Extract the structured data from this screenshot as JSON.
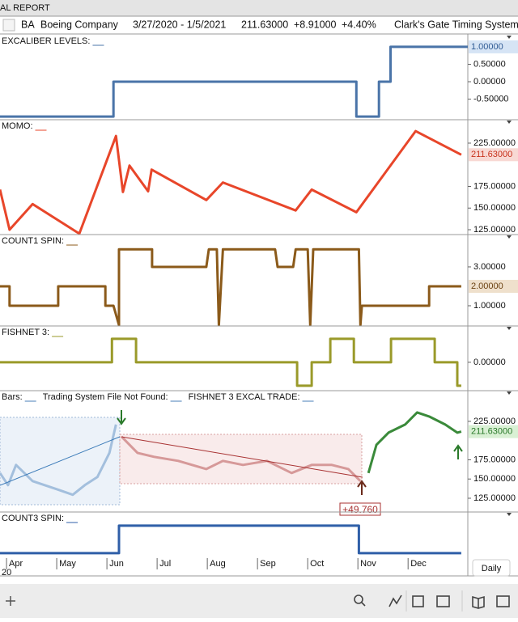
{
  "window_title": "AL REPORT",
  "header": {
    "symbol": "BA",
    "name": "Boeing Company",
    "date_range": "3/27/2020 - 1/5/2021",
    "last": "211.63000",
    "change": "+8.91000",
    "change_pct": "+4.40%",
    "system": "Clark's Gate Timing System ©"
  },
  "time_axis": {
    "xlim": [
      -0.13,
      9.19
    ],
    "xticks": [
      {
        "value": 0,
        "label": "Apr"
      },
      {
        "value": 1,
        "label": "May"
      },
      {
        "value": 2,
        "label": "Jun"
      },
      {
        "value": 3,
        "label": "Jul"
      },
      {
        "value": 4,
        "label": "Aug"
      },
      {
        "value": 5,
        "label": "Sep"
      },
      {
        "value": 6,
        "label": "Oct"
      },
      {
        "value": 7,
        "label": "Nov"
      },
      {
        "value": 8,
        "label": "Dec"
      }
    ],
    "year_label": "20",
    "period": "Daily"
  },
  "chart_data": [
    {
      "type": "line",
      "title": "EXCALIBER LEVELS:",
      "color": "#4a74a8",
      "x": [
        -0.13,
        2.13,
        2.13,
        6.97,
        6.97,
        7.42,
        7.42,
        7.65,
        7.65,
        9.19
      ],
      "values": [
        -1,
        -1,
        0,
        0,
        -1,
        -1,
        0,
        0,
        1,
        1
      ],
      "ylim": [
        -1.09,
        1.3
      ],
      "yticks": [
        {
          "value": 0.5,
          "label": "0.50000"
        },
        {
          "value": 0,
          "label": "0.00000"
        },
        {
          "value": -0.5,
          "label": "-0.50000"
        }
      ],
      "last_value": {
        "value": 1,
        "label": "1.00000"
      },
      "last_colors": [
        "#d6e4f5",
        "#2f5b94"
      ]
    },
    {
      "type": "line",
      "title": "MOMO:",
      "color": "#e8462a",
      "x": [
        -0.13,
        0.06,
        0.52,
        1.45,
        2.18,
        2.32,
        2.45,
        2.82,
        2.89,
        3.98,
        4.31,
        5.76,
        6.08,
        6.97,
        8.15,
        9.06
      ],
      "values": [
        171.3,
        125.0,
        154.6,
        120.4,
        233.3,
        168.5,
        199.1,
        169.4,
        194.4,
        159.3,
        179.6,
        147.2,
        171.3,
        145.2,
        238.9,
        211.63
      ],
      "ylim": [
        119.4,
        250.2
      ],
      "yticks": [
        {
          "value": 225,
          "label": "225.00000"
        },
        {
          "value": 175,
          "label": "175.00000"
        },
        {
          "value": 150,
          "label": "150.00000"
        },
        {
          "value": 125,
          "label": "125.00000"
        }
      ],
      "last_value": {
        "value": 211.63,
        "label": "211.63000"
      },
      "last_colors": [
        "#f8d9d4",
        "#c8321c"
      ]
    },
    {
      "type": "line",
      "title": "COUNT1 SPIN:",
      "color": "#8b5a1a",
      "x": [
        -0.13,
        0.06,
        0.06,
        1.03,
        1.03,
        1.97,
        1.97,
        2.13,
        2.24,
        2.24,
        2.9,
        2.9,
        3.98,
        4.03,
        4.19,
        4.23,
        4.31,
        5.35,
        5.4,
        5.71,
        5.76,
        6.0,
        6.05,
        6.11,
        7.02,
        7.05,
        7.08,
        8.42,
        8.42,
        9.06
      ],
      "values": [
        2,
        2,
        1,
        1,
        2,
        2,
        1,
        1,
        0,
        3.9,
        3.9,
        3,
        3,
        3.9,
        3.9,
        0,
        3.9,
        3.9,
        3,
        3,
        3.9,
        3.9,
        0,
        3.9,
        3.9,
        0,
        1,
        1,
        2,
        2
      ],
      "ylim": [
        -0.04,
        4.58
      ],
      "yticks": [
        {
          "value": 3,
          "label": "3.00000"
        },
        {
          "value": 1,
          "label": "1.00000"
        }
      ],
      "last_value": {
        "value": 2,
        "label": "2.00000"
      },
      "last_colors": [
        "#efe0cc",
        "#6b4212"
      ]
    },
    {
      "type": "line",
      "title": "FISHNET 3:",
      "color": "#9a9a2a",
      "x": [
        -0.13,
        2.1,
        2.1,
        2.58,
        2.58,
        5.79,
        5.79,
        6.08,
        6.08,
        6.45,
        6.45,
        6.92,
        6.92,
        7.66,
        7.66,
        8.53,
        8.53,
        8.98,
        8.98,
        9.06
      ],
      "values": [
        0,
        0,
        1,
        1,
        0,
        0,
        -1,
        -1,
        0,
        0,
        1,
        1,
        0,
        0,
        1,
        1,
        0,
        0,
        -1,
        -1
      ],
      "ylim": [
        -1.21,
        1.48
      ],
      "yticks": [
        {
          "value": 0,
          "label": "0.00000"
        }
      ]
    },
    {
      "type": "line",
      "title": "Bars:",
      "legend_texts": [
        "Trading System File Not Found:",
        "FISHNET 3 EXCAL TRADE:"
      ],
      "trade_label": "+49.760",
      "series": [
        {
          "color": "#4a7fb8",
          "x": [
            -0.13,
            0.03,
            0.19,
            0.52,
            0.76,
            1.0,
            1.32,
            1.56,
            1.81,
            2.05,
            2.18
          ],
          "values": [
            157.8,
            142.0,
            168.3,
            147.3,
            142.0,
            136.8,
            129.5,
            142.0,
            152.6,
            184.0,
            220.8
          ]
        },
        {
          "color": "#a83232",
          "x": [
            2.29,
            2.61,
            2.94,
            3.42,
            3.98,
            4.31,
            4.71,
            5.19,
            5.68,
            6.08,
            6.48,
            6.81,
            7.05
          ],
          "values": [
            205.1,
            184.0,
            178.8,
            173.6,
            163.0,
            173.6,
            168.3,
            173.6,
            157.8,
            168.3,
            168.3,
            163.0,
            147.3
          ]
        },
        {
          "color": "#3a8a3a",
          "x": [
            7.21,
            7.37,
            7.61,
            7.94,
            8.18,
            8.42,
            8.74,
            8.98,
            9.06
          ],
          "values": [
            157.8,
            194.5,
            210.3,
            220.8,
            236.6,
            231.3,
            220.8,
            210.3,
            211.63
          ]
        }
      ],
      "ylim": [
        107.1,
        262.8
      ],
      "yticks": [
        {
          "value": 225,
          "label": "225.00000"
        },
        {
          "value": 175,
          "label": "175.00000"
        },
        {
          "value": 150,
          "label": "150.00000"
        },
        {
          "value": 125,
          "label": "125.00000"
        }
      ],
      "last_value": {
        "value": 211.63,
        "label": "211.63000"
      },
      "last_colors": [
        "#d9f0d4",
        "#2a7a2a"
      ]
    },
    {
      "type": "line",
      "title": "COUNT3 SPIN:",
      "color": "#2f5fa8",
      "x": [
        -0.13,
        2.24,
        2.24,
        7.02,
        7.02,
        9.06
      ],
      "values": [
        0,
        0,
        1,
        1,
        0,
        0
      ],
      "ylim": [
        -0.18,
        1.44
      ],
      "yticks": []
    }
  ]
}
